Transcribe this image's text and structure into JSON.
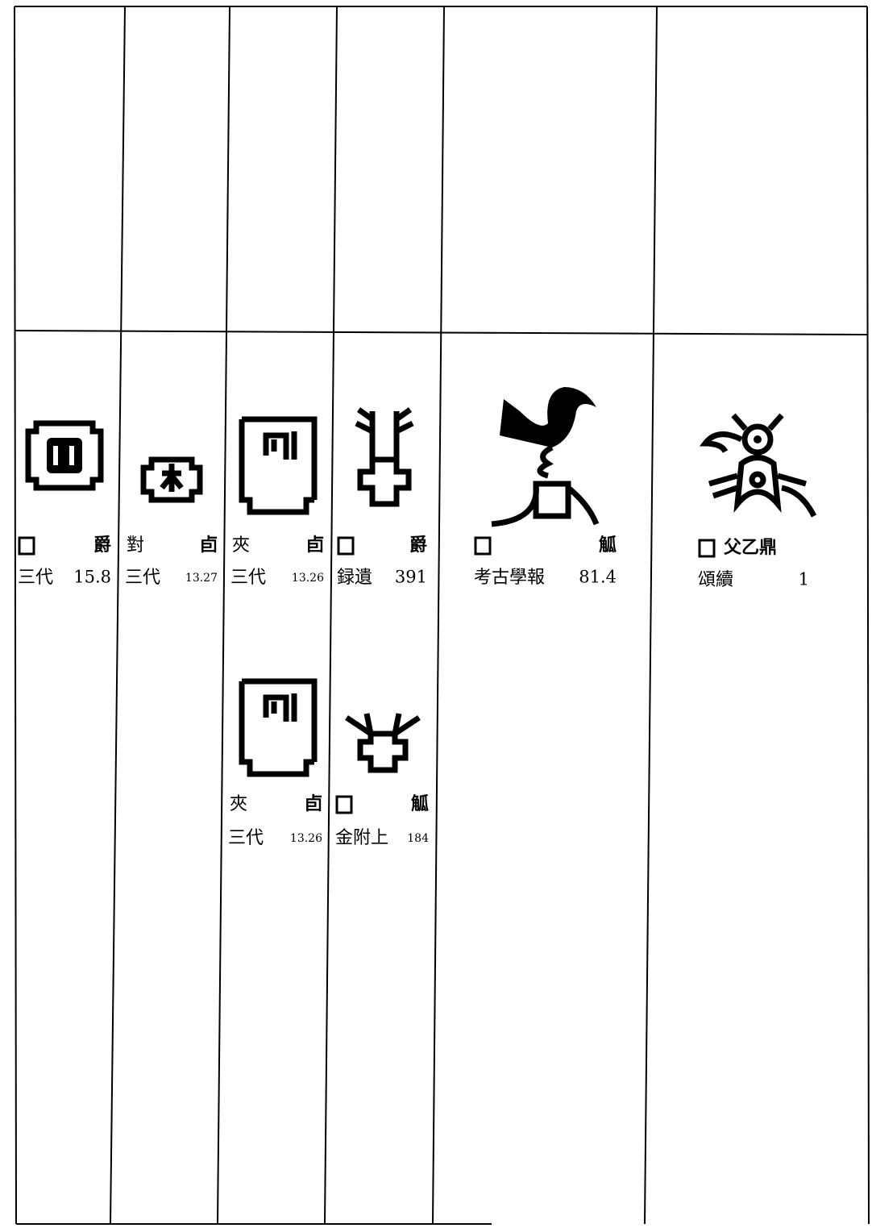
{
  "entries": [
    {
      "vessel": "爵",
      "source": "三代",
      "page": "15.8"
    },
    {
      "name": "對",
      "vessel": "卣",
      "source": "三代",
      "page": "13.27"
    },
    {
      "name": "夾",
      "vessel": "卣",
      "source": "三代",
      "page": "13.26"
    },
    {
      "vessel": "爵",
      "source": "録遺",
      "page": "391"
    },
    {
      "vessel": "觚",
      "source": "考古學報",
      "page": "81.4"
    },
    {
      "vessel": "父乙鼎",
      "source": "頌續",
      "page": "1"
    },
    {
      "name": "夾",
      "vessel": "卣",
      "source": "三代",
      "page": "13.26"
    },
    {
      "vessel": "觚",
      "source": "金附上",
      "page": "184"
    }
  ]
}
